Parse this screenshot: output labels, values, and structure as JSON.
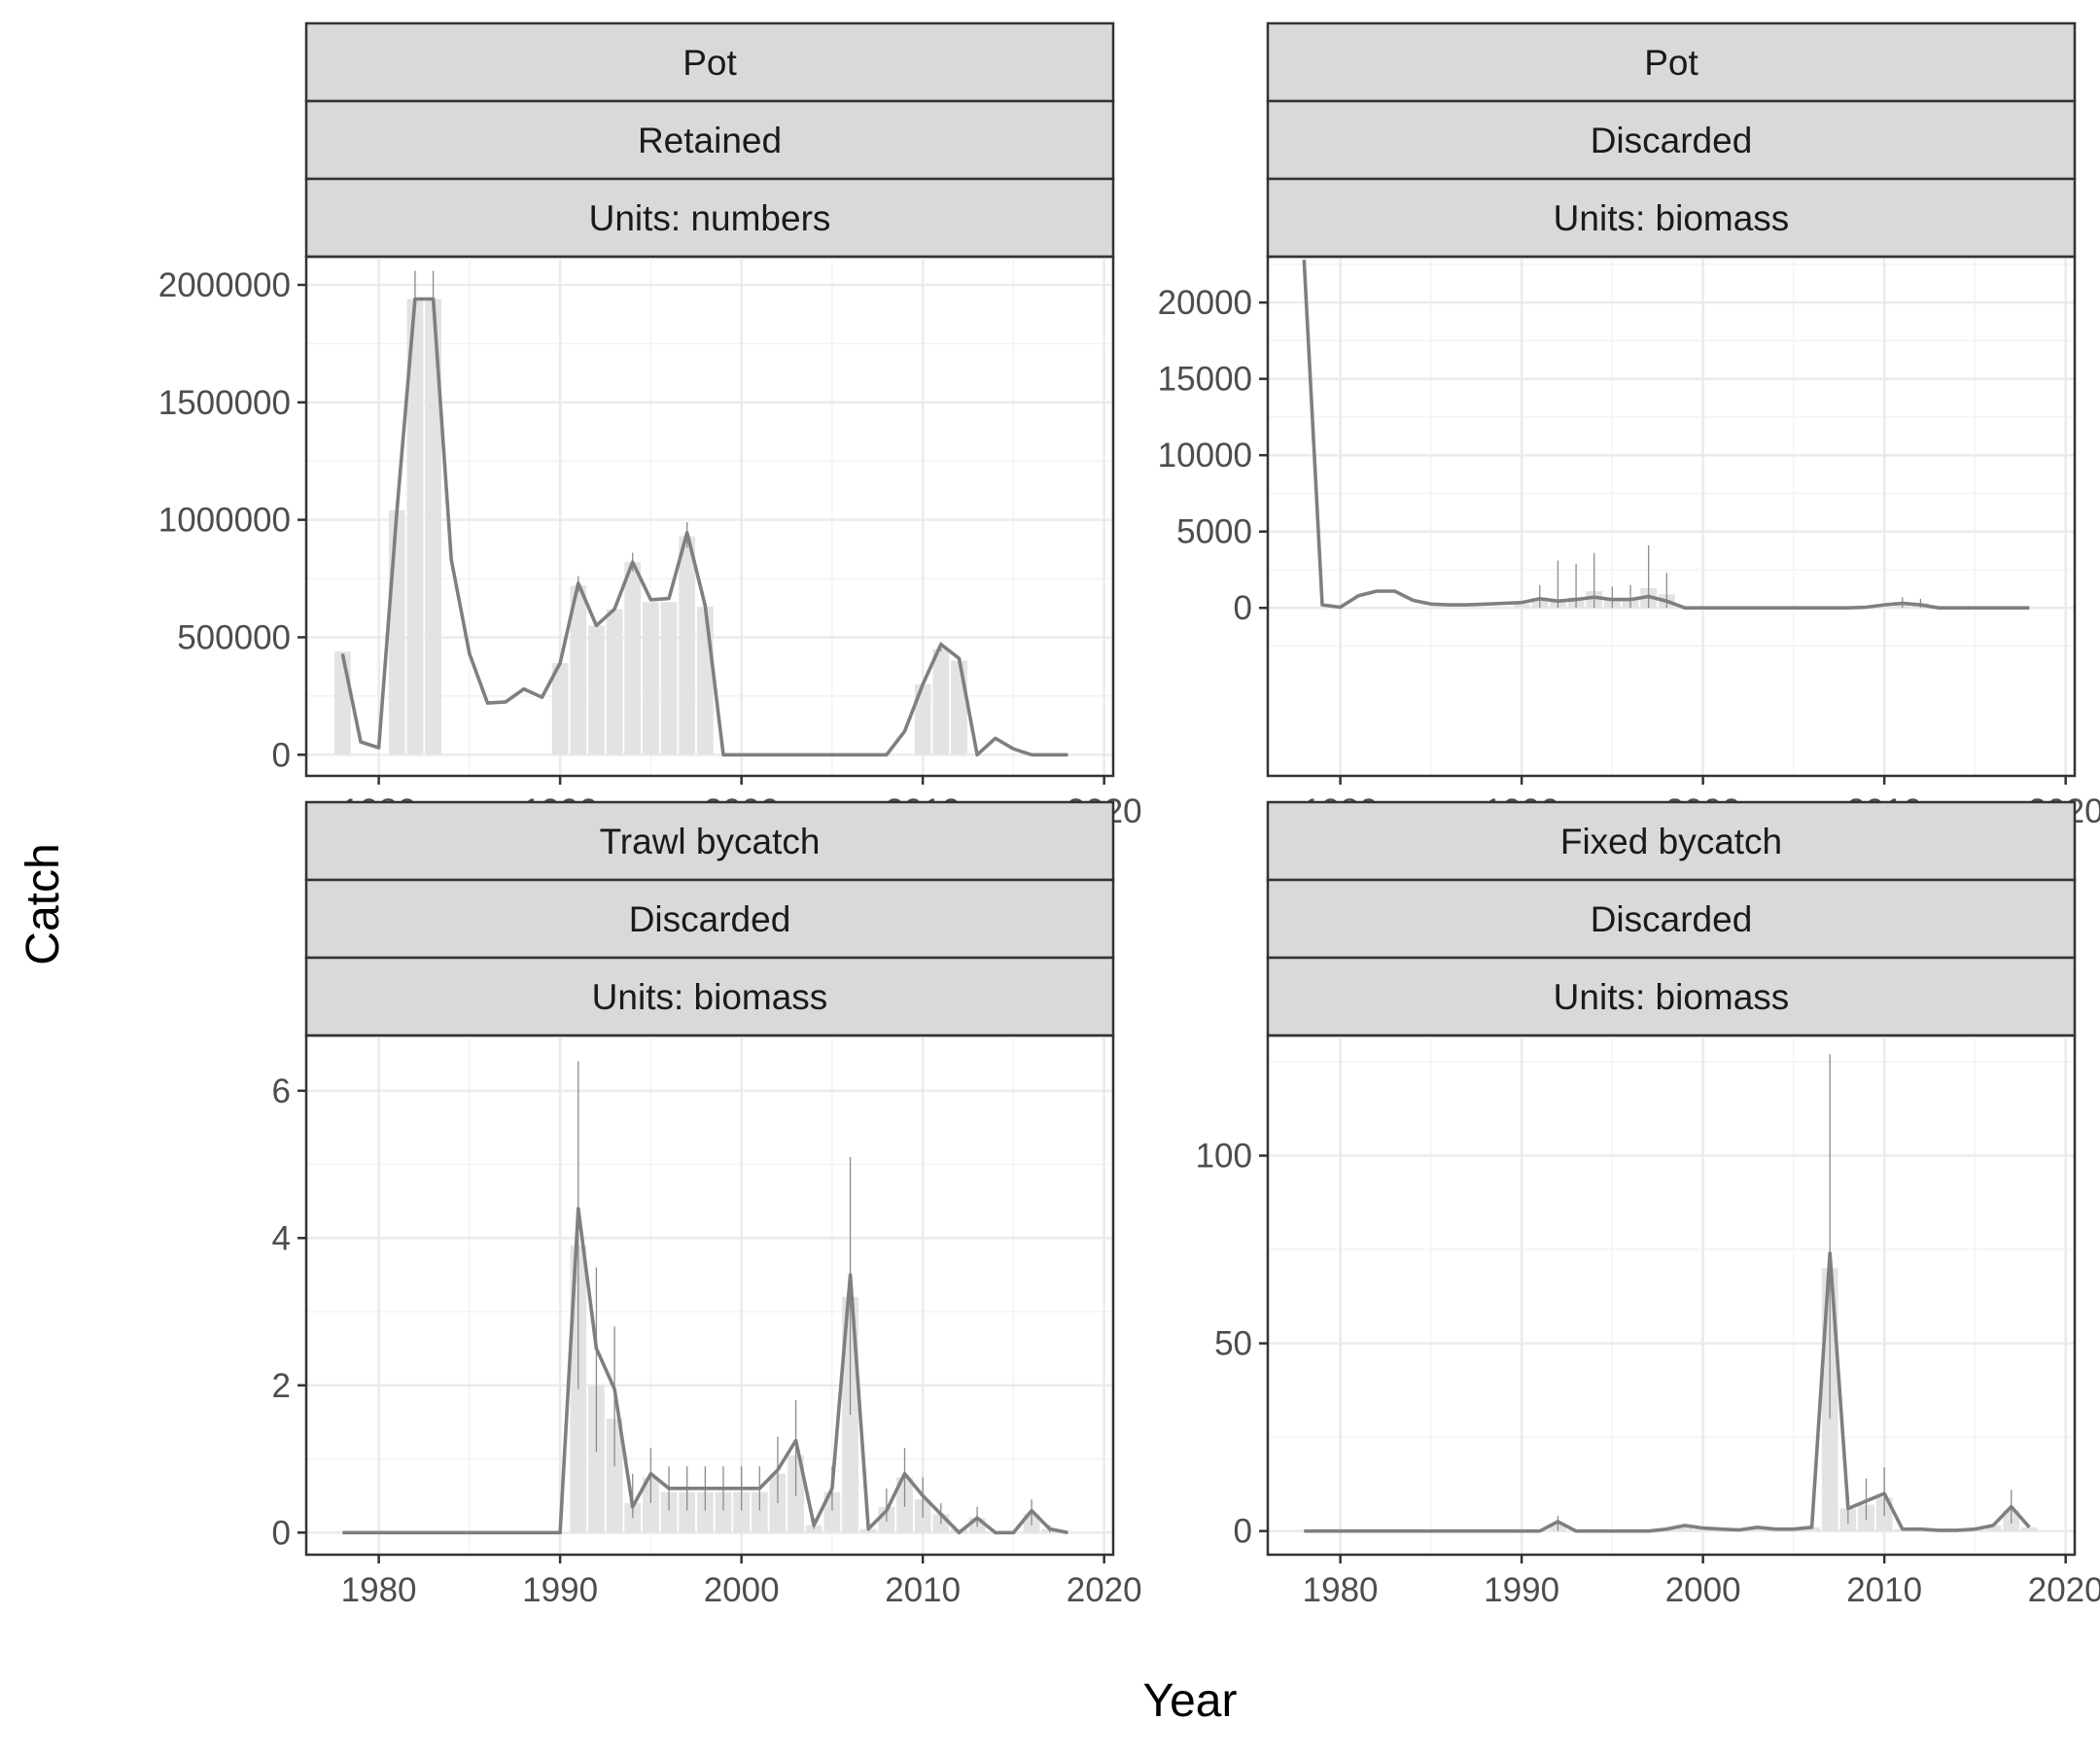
{
  "chart_data": {
    "type": "bar",
    "xlabel": "Year",
    "ylabel": "Catch",
    "x_ticks": [
      "1980",
      "1990",
      "2000",
      "2010",
      "2020"
    ],
    "xlim": [
      1976,
      2020.5
    ],
    "panels": [
      {
        "strips": [
          "Pot",
          "Retained",
          "Units: numbers"
        ],
        "ylim": [
          -90000,
          2120000
        ],
        "y_ticks": [
          {
            "value": 0,
            "label": "0"
          },
          {
            "value": 500000,
            "label": "500000"
          },
          {
            "value": 1000000,
            "label": "1000000"
          },
          {
            "value": 1500000,
            "label": "1500000"
          },
          {
            "value": 2000000,
            "label": "2000000"
          }
        ],
        "x": [
          1978,
          1979,
          1980,
          1981,
          1982,
          1983,
          1984,
          1985,
          1986,
          1987,
          1988,
          1989,
          1990,
          1991,
          1992,
          1993,
          1994,
          1995,
          1996,
          1997,
          1998,
          1999,
          2000,
          2001,
          2002,
          2003,
          2004,
          2005,
          2006,
          2007,
          2008,
          2009,
          2010,
          2011,
          2012,
          2013,
          2014,
          2015,
          2016,
          2017,
          2018
        ],
        "values": [
          430000,
          55000,
          30000,
          1040000,
          1940000,
          1940000,
          830000,
          430000,
          220000,
          225000,
          280000,
          245000,
          390000,
          730000,
          550000,
          620000,
          820000,
          660000,
          665000,
          945000,
          635000,
          0,
          0,
          0,
          0,
          0,
          0,
          0,
          0,
          0,
          0,
          100000,
          300000,
          470000,
          410000,
          0,
          70000,
          25000,
          0,
          0,
          0
        ],
        "observed": [
          440000,
          0,
          0,
          1040000,
          1940000,
          1940000,
          0,
          0,
          0,
          0,
          0,
          0,
          390000,
          720000,
          550000,
          620000,
          820000,
          650000,
          650000,
          930000,
          630000,
          0,
          0,
          0,
          0,
          0,
          0,
          0,
          0,
          0,
          0,
          0,
          300000,
          450000,
          400000,
          0,
          0,
          0,
          0,
          0,
          0
        ],
        "err_low": [
          0,
          0,
          0,
          0,
          1880000,
          1880000,
          0,
          0,
          0,
          0,
          0,
          0,
          0,
          690000,
          0,
          0,
          780000,
          0,
          0,
          880000,
          0,
          0,
          0,
          0,
          0,
          0,
          0,
          0,
          0,
          0,
          0,
          0,
          0,
          440000,
          0,
          0,
          0,
          0,
          0,
          0,
          0
        ],
        "err_high": [
          0,
          0,
          0,
          0,
          2060000,
          2060000,
          0,
          0,
          0,
          0,
          0,
          0,
          0,
          760000,
          0,
          0,
          860000,
          0,
          0,
          990000,
          0,
          0,
          0,
          0,
          0,
          0,
          0,
          0,
          0,
          0,
          0,
          0,
          0,
          480000,
          0,
          0,
          0,
          0,
          0,
          0,
          0
        ]
      },
      {
        "strips": [
          "Pot",
          "Discarded",
          "Units: biomass"
        ],
        "ylim": [
          -1100000,
          2300000
        ],
        "ylim_scale": 0.01,
        "y_ticks": [
          {
            "value": 0,
            "label": "0"
          },
          {
            "value": 5000,
            "label": "5000"
          },
          {
            "value": 10000,
            "label": "10000"
          },
          {
            "value": 15000,
            "label": "15000"
          },
          {
            "value": 20000,
            "label": "20000"
          }
        ],
        "x": [
          1978,
          1979,
          1980,
          1981,
          1982,
          1983,
          1984,
          1985,
          1986,
          1987,
          1988,
          1989,
          1990,
          1991,
          1992,
          1993,
          1994,
          1995,
          1996,
          1997,
          1998,
          1999,
          2000,
          2001,
          2002,
          2003,
          2004,
          2005,
          2006,
          2007,
          2008,
          2009,
          2010,
          2011,
          2012,
          2013,
          2014,
          2015,
          2016,
          2017,
          2018
        ],
        "values": [
          22800,
          200,
          50,
          800,
          1100,
          1100,
          500,
          250,
          200,
          200,
          250,
          300,
          350,
          600,
          450,
          550,
          700,
          550,
          550,
          750,
          450,
          0,
          0,
          0,
          0,
          0,
          0,
          0,
          0,
          0,
          0,
          50,
          200,
          300,
          200,
          0,
          0,
          0,
          0,
          0,
          0
        ],
        "observed": [
          0,
          0,
          0,
          0,
          0,
          0,
          0,
          0,
          0,
          0,
          0,
          0,
          250,
          650,
          550,
          700,
          1100,
          600,
          600,
          1300,
          900,
          0,
          0,
          0,
          0,
          0,
          0,
          0,
          0,
          0,
          0,
          0,
          0,
          400,
          350,
          0,
          0,
          0,
          0,
          0,
          0
        ],
        "err_low": [
          0,
          0,
          0,
          0,
          0,
          0,
          0,
          0,
          0,
          0,
          0,
          0,
          0,
          0,
          0,
          0,
          0,
          0,
          0,
          0,
          0,
          0,
          0,
          0,
          0,
          0,
          0,
          0,
          0,
          0,
          0,
          0,
          0,
          0,
          0,
          0,
          0,
          0,
          0,
          0,
          0
        ],
        "err_high": [
          0,
          0,
          0,
          0,
          0,
          0,
          0,
          0,
          0,
          0,
          0,
          0,
          0,
          1500,
          3100,
          2900,
          3600,
          1400,
          1500,
          4100,
          2300,
          0,
          0,
          0,
          0,
          0,
          0,
          0,
          0,
          0,
          0,
          0,
          0,
          700,
          600,
          0,
          0,
          0,
          0,
          0,
          0
        ]
      },
      {
        "strips": [
          "Trawl bycatch",
          "Discarded",
          "Units: biomass"
        ],
        "ylim": [
          -0.3,
          6.75
        ],
        "y_ticks": [
          {
            "value": 0,
            "label": "0"
          },
          {
            "value": 2,
            "label": "2"
          },
          {
            "value": 4,
            "label": "4"
          },
          {
            "value": 6,
            "label": "6"
          }
        ],
        "x": [
          1978,
          1979,
          1980,
          1981,
          1982,
          1983,
          1984,
          1985,
          1986,
          1987,
          1988,
          1989,
          1990,
          1991,
          1992,
          1993,
          1994,
          1995,
          1996,
          1997,
          1998,
          1999,
          2000,
          2001,
          2002,
          2003,
          2004,
          2005,
          2006,
          2007,
          2008,
          2009,
          2010,
          2011,
          2012,
          2013,
          2014,
          2015,
          2016,
          2017,
          2018
        ],
        "values": [
          0,
          0,
          0,
          0,
          0,
          0,
          0,
          0,
          0,
          0,
          0,
          0,
          0,
          4.4,
          2.5,
          1.95,
          0.35,
          0.8,
          0.6,
          0.6,
          0.6,
          0.6,
          0.6,
          0.6,
          0.85,
          1.25,
          0.1,
          0.6,
          3.5,
          0.05,
          0.3,
          0.8,
          0.5,
          0.25,
          0.0,
          0.2,
          0.0,
          0.0,
          0.3,
          0.05,
          0.0
        ],
        "observed": [
          0,
          0,
          0,
          0,
          0,
          0,
          0,
          0,
          0,
          0,
          0,
          0,
          0,
          3.9,
          2.0,
          1.55,
          0.4,
          0.75,
          0.55,
          0.55,
          0.55,
          0.55,
          0.55,
          0.55,
          0.8,
          1.05,
          0.1,
          0.55,
          3.2,
          0.05,
          0.35,
          0.75,
          0.45,
          0.25,
          0.05,
          0.2,
          0.0,
          0.0,
          0.25,
          0.05,
          0.0
        ],
        "err_low": [
          0,
          0,
          0,
          0,
          0,
          0,
          0,
          0,
          0,
          0,
          0,
          0,
          0,
          1.95,
          1.1,
          0.9,
          0.2,
          0.4,
          0.3,
          0.3,
          0.3,
          0.3,
          0.3,
          0.3,
          0.4,
          0.5,
          0.05,
          0.3,
          1.6,
          0.02,
          0.15,
          0.35,
          0.2,
          0.12,
          0,
          0.08,
          0,
          0,
          0.1,
          0,
          0
        ],
        "err_high": [
          0,
          0,
          0,
          0,
          0,
          0,
          0,
          0,
          0,
          0,
          0,
          0,
          0,
          6.4,
          3.6,
          2.8,
          0.8,
          1.15,
          0.9,
          0.9,
          0.9,
          0.9,
          0.9,
          0.9,
          1.3,
          1.8,
          0.2,
          0.9,
          5.1,
          0.1,
          0.6,
          1.15,
          0.75,
          0.4,
          0,
          0.35,
          0,
          0,
          0.45,
          0.1,
          0
        ]
      },
      {
        "strips": [
          "Fixed bycatch",
          "Discarded",
          "Units: biomass"
        ],
        "ylim": [
          -6.3,
          132
        ],
        "y_ticks": [
          {
            "value": 0,
            "label": "0"
          },
          {
            "value": 50,
            "label": "50"
          },
          {
            "value": 100,
            "label": "100"
          }
        ],
        "x": [
          1978,
          1979,
          1980,
          1981,
          1982,
          1983,
          1984,
          1985,
          1986,
          1987,
          1988,
          1989,
          1990,
          1991,
          1992,
          1993,
          1994,
          1995,
          1996,
          1997,
          1998,
          1999,
          2000,
          2001,
          2002,
          2003,
          2004,
          2005,
          2006,
          2007,
          2008,
          2009,
          2010,
          2011,
          2012,
          2013,
          2014,
          2015,
          2016,
          2017,
          2018
        ],
        "values": [
          0,
          0,
          0,
          0,
          0,
          0,
          0,
          0,
          0,
          0,
          0,
          0,
          0,
          0,
          2.5,
          0,
          0,
          0,
          0,
          0,
          0.5,
          1.5,
          0.8,
          0.5,
          0.3,
          1,
          0.5,
          0.5,
          1,
          74,
          6,
          8,
          10,
          0.5,
          0.5,
          0.2,
          0.2,
          0.5,
          1.5,
          6.5,
          1
        ],
        "observed": [
          0,
          0,
          0,
          0,
          0,
          0,
          0,
          0,
          0,
          0,
          0,
          0,
          0,
          0,
          2,
          0,
          0,
          0,
          0,
          0,
          0.5,
          1.5,
          0.8,
          0.5,
          0.3,
          1,
          0.5,
          0.5,
          1,
          70,
          6,
          7,
          9,
          0.5,
          0.5,
          0.2,
          0.2,
          0.5,
          1.5,
          5.5,
          1
        ],
        "err_low": [
          0,
          0,
          0,
          0,
          0,
          0,
          0,
          0,
          0,
          0,
          0,
          0,
          0,
          0,
          0,
          0,
          0,
          0,
          0,
          0,
          0,
          0,
          0,
          0,
          0,
          0,
          0,
          0,
          0,
          30,
          2,
          3,
          4,
          0,
          0,
          0,
          0,
          0,
          0,
          2,
          0
        ],
        "err_high": [
          0,
          0,
          0,
          0,
          0,
          0,
          0,
          0,
          0,
          0,
          0,
          0,
          0,
          0,
          4,
          0,
          0,
          0,
          0,
          0,
          0,
          0,
          0,
          0,
          0,
          0,
          0,
          0,
          0,
          127,
          10,
          14,
          17,
          0,
          0,
          0,
          0,
          0,
          0,
          11,
          0
        ]
      }
    ]
  }
}
